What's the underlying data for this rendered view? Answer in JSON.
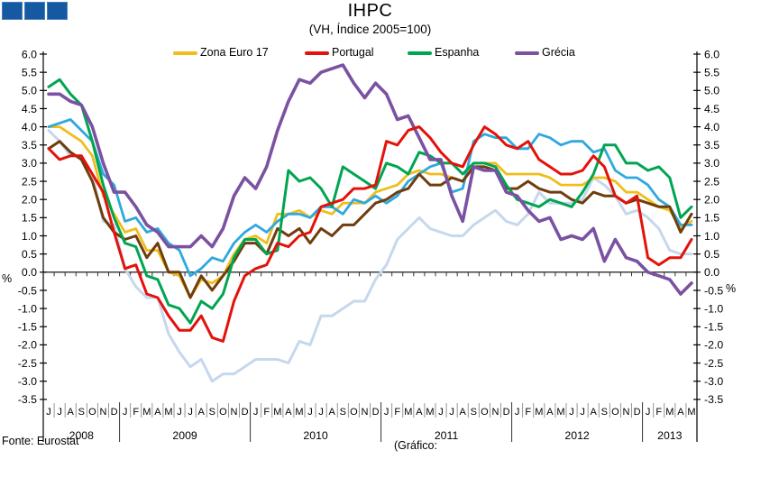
{
  "logo": {
    "color": "#1459A2"
  },
  "chart": {
    "title": "IHPC",
    "subtitle": "(VH, Índice 2005=100)"
  },
  "footer": {
    "source": "Fonte: Eurostat",
    "credit": "(Gráfico:"
  },
  "chart_data": {
    "type": "line",
    "title": "IHPC",
    "subtitle": "(VH, Índice 2005=100)",
    "grid": false,
    "legend_position": "top",
    "y_axis": {
      "min": -3.5,
      "max": 6.0,
      "step": 0.5,
      "unit": "%",
      "tick_labels": [
        "6.0",
        "5.5",
        "5.0",
        "4.5",
        "4.0",
        "3.5",
        "3.0",
        "2.5",
        "2.0",
        "1.5",
        "1.0",
        "0.5",
        "0.0",
        "-0.5",
        "-1.0",
        "-1.5",
        "-2.0",
        "-2.5",
        "-3.0",
        "-3.5"
      ]
    },
    "x_axis": {
      "month_labels": [
        "J",
        "J",
        "A",
        "S",
        "O",
        "N",
        "D",
        "J",
        "F",
        "M",
        "A",
        "M",
        "J",
        "J",
        "A",
        "S",
        "O",
        "N",
        "D",
        "J",
        "F",
        "M",
        "A",
        "M",
        "J",
        "J",
        "A",
        "S",
        "O",
        "N",
        "D",
        "J",
        "F",
        "M",
        "A",
        "M",
        "J",
        "J",
        "A",
        "S",
        "O",
        "N",
        "D",
        "J",
        "F",
        "M",
        "A",
        "M",
        "J",
        "J",
        "A",
        "S",
        "O",
        "N",
        "D",
        "J",
        "F",
        "M",
        "A",
        "M"
      ],
      "year_groups": [
        {
          "label": "2008",
          "months": 7
        },
        {
          "label": "2009",
          "months": 12
        },
        {
          "label": "2010",
          "months": 12
        },
        {
          "label": "2011",
          "months": 12
        },
        {
          "label": "2012",
          "months": 12
        },
        {
          "label": "2013",
          "months": 5
        }
      ]
    },
    "legend": [
      {
        "label": "Zona Euro 17",
        "color": "#EFBE1D"
      },
      {
        "label": "Portugal",
        "color": "#E3120B"
      },
      {
        "label": "Espanha",
        "color": "#00A551"
      },
      {
        "label": "Grécia",
        "color": "#7B51A1"
      }
    ],
    "series": [
      {
        "id": "lightblue-line",
        "name": "unlabeled-lightblue",
        "color": "#C5D8EC",
        "width": 3,
        "in_legend": false,
        "values": [
          3.9,
          3.6,
          3.2,
          3.2,
          2.7,
          1.4,
          1.3,
          0.1,
          -0.4,
          -0.7,
          -0.7,
          -1.7,
          -2.2,
          -2.6,
          -2.4,
          -3.0,
          -2.8,
          -2.8,
          -2.6,
          -2.4,
          -2.4,
          -2.4,
          -2.5,
          -1.9,
          -2.0,
          -1.2,
          -1.2,
          -1.0,
          -0.8,
          -0.8,
          -0.2,
          0.2,
          0.9,
          1.2,
          1.5,
          1.2,
          1.1,
          1.0,
          1.0,
          1.3,
          1.5,
          1.7,
          1.4,
          1.3,
          1.6,
          2.2,
          1.9,
          1.9,
          1.9,
          2.0,
          2.6,
          2.4,
          2.1,
          1.6,
          1.7,
          1.5,
          1.2,
          0.6,
          0.5,
          0.5
        ]
      },
      {
        "id": "zona-euro-17",
        "name": "Zona Euro 17",
        "color": "#EFBE1D",
        "width": 2.8,
        "in_legend": true,
        "values": [
          4.0,
          4.0,
          3.8,
          3.6,
          3.2,
          2.1,
          1.6,
          1.1,
          1.2,
          0.6,
          0.6,
          0.0,
          -0.1,
          -0.7,
          -0.2,
          -0.3,
          -0.1,
          0.5,
          0.9,
          1.0,
          0.8,
          1.6,
          1.6,
          1.7,
          1.5,
          1.7,
          1.6,
          1.9,
          1.9,
          1.9,
          2.2,
          2.3,
          2.4,
          2.7,
          2.8,
          2.7,
          2.7,
          2.6,
          2.5,
          3.0,
          3.0,
          3.0,
          2.7,
          2.7,
          2.7,
          2.7,
          2.6,
          2.4,
          2.4,
          2.4,
          2.6,
          2.6,
          2.5,
          2.2,
          2.2,
          2.0,
          1.8,
          1.7,
          1.2,
          1.4
        ]
      },
      {
        "id": "cyan-line",
        "name": "unlabeled-cyan",
        "color": "#2EA8DF",
        "width": 2.8,
        "in_legend": false,
        "values": [
          4.0,
          4.1,
          4.2,
          3.9,
          3.6,
          2.7,
          2.4,
          1.4,
          1.5,
          1.1,
          1.2,
          0.8,
          0.6,
          -0.1,
          0.1,
          0.4,
          0.3,
          0.8,
          1.1,
          1.3,
          1.1,
          1.4,
          1.6,
          1.6,
          1.5,
          1.8,
          1.8,
          1.6,
          2.0,
          1.9,
          2.1,
          1.9,
          2.1,
          2.5,
          2.7,
          2.9,
          3.0,
          2.2,
          2.3,
          3.6,
          3.8,
          3.7,
          3.7,
          3.4,
          3.4,
          3.8,
          3.7,
          3.5,
          3.6,
          3.6,
          3.3,
          3.4,
          2.8,
          2.6,
          2.6,
          2.4,
          2.0,
          1.8,
          1.3,
          1.3
        ]
      },
      {
        "id": "brown-line",
        "name": "unlabeled-brown",
        "color": "#6F3D0E",
        "width": 3,
        "in_legend": false,
        "values": [
          3.4,
          3.6,
          3.3,
          3.1,
          2.5,
          1.5,
          1.1,
          0.9,
          1.0,
          0.4,
          0.8,
          0.0,
          0.0,
          -0.7,
          -0.1,
          -0.5,
          -0.1,
          0.3,
          0.8,
          0.8,
          0.5,
          1.2,
          1.0,
          1.2,
          0.8,
          1.2,
          1.0,
          1.3,
          1.3,
          1.6,
          1.9,
          2.0,
          2.2,
          2.3,
          2.7,
          2.4,
          2.4,
          2.6,
          2.5,
          2.9,
          2.9,
          2.8,
          2.3,
          2.3,
          2.5,
          2.3,
          2.2,
          2.2,
          2.0,
          1.9,
          2.2,
          2.1,
          2.1,
          1.9,
          2.0,
          1.9,
          1.8,
          1.8,
          1.1,
          1.6
        ]
      },
      {
        "id": "espanha",
        "name": "Espanha",
        "color": "#00A551",
        "width": 3,
        "in_legend": true,
        "values": [
          5.1,
          5.3,
          4.9,
          4.6,
          3.6,
          2.4,
          1.5,
          0.8,
          0.7,
          -0.1,
          -0.2,
          -0.9,
          -1.0,
          -1.4,
          -0.8,
          -1.0,
          -0.6,
          0.4,
          0.9,
          0.9,
          0.5,
          0.6,
          2.8,
          2.5,
          2.6,
          2.3,
          1.8,
          2.9,
          2.7,
          2.5,
          2.3,
          3.0,
          2.9,
          2.7,
          3.3,
          3.2,
          3.0,
          3.0,
          2.7,
          3.0,
          3.0,
          2.9,
          2.4,
          2.0,
          1.9,
          1.8,
          2.0,
          1.9,
          1.8,
          2.2,
          2.7,
          3.5,
          3.5,
          3.0,
          3.0,
          2.8,
          2.9,
          2.6,
          1.5,
          1.8
        ]
      },
      {
        "id": "grecia",
        "name": "Grécia",
        "color": "#7B51A1",
        "width": 3.6,
        "in_legend": true,
        "values": [
          4.9,
          4.9,
          4.7,
          4.6,
          4.0,
          3.0,
          2.2,
          2.2,
          1.8,
          1.3,
          1.1,
          0.7,
          0.7,
          0.7,
          1.0,
          0.7,
          1.2,
          2.1,
          2.6,
          2.3,
          2.9,
          3.9,
          4.7,
          5.3,
          5.2,
          5.5,
          5.6,
          5.7,
          5.2,
          4.8,
          5.2,
          4.9,
          4.2,
          4.3,
          3.7,
          3.1,
          3.1,
          2.1,
          1.4,
          2.9,
          2.8,
          2.8,
          2.2,
          2.1,
          1.7,
          1.4,
          1.5,
          0.9,
          1.0,
          0.9,
          1.2,
          0.3,
          0.9,
          0.4,
          0.3,
          0.0,
          -0.1,
          -0.2,
          -0.6,
          -0.3
        ]
      },
      {
        "id": "portugal",
        "name": "Portugal",
        "color": "#E3120B",
        "width": 3,
        "in_legend": true,
        "values": [
          3.4,
          3.1,
          3.2,
          3.2,
          2.7,
          2.2,
          1.1,
          0.1,
          0.2,
          -0.6,
          -0.7,
          -1.2,
          -1.6,
          -1.6,
          -1.2,
          -1.8,
          -1.9,
          -0.8,
          -0.1,
          0.1,
          0.2,
          0.8,
          0.7,
          1.0,
          1.1,
          1.8,
          1.9,
          2.0,
          2.3,
          2.3,
          2.4,
          3.6,
          3.5,
          3.9,
          4.0,
          3.7,
          3.3,
          3.0,
          2.9,
          3.5,
          4.0,
          3.8,
          3.5,
          3.4,
          3.6,
          3.1,
          2.9,
          2.7,
          2.7,
          2.8,
          3.2,
          2.9,
          2.1,
          1.9,
          2.1,
          0.4,
          0.2,
          0.4,
          0.4,
          0.9
        ]
      }
    ]
  }
}
